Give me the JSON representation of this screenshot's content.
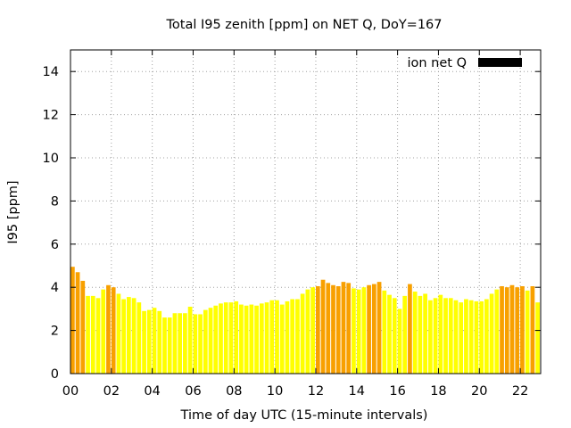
{
  "chart_data": {
    "type": "bar",
    "title": "Total I95 zenith [ppm] on NET Q, DoY=167",
    "xlabel": "Time of day UTC (15-minute intervals)",
    "ylabel": "I95 [ppm]",
    "xlim": [
      0,
      23
    ],
    "ylim": [
      0,
      15
    ],
    "x_ticks": [
      "00",
      "02",
      "04",
      "06",
      "08",
      "10",
      "12",
      "14",
      "16",
      "18",
      "20",
      "22"
    ],
    "y_ticks": [
      "0",
      "2",
      "4",
      "6",
      "8",
      "10",
      "12",
      "14"
    ],
    "grid": true,
    "legend": {
      "position": "top-right",
      "label": "ion net Q",
      "color": "#000000"
    },
    "colors": {
      "low": "#ffff00",
      "medium": "#f8a000",
      "legend_swatch": "#000000"
    },
    "interval_hours": 0.25,
    "series": [
      {
        "name": "ion net Q",
        "values": [
          4.95,
          4.7,
          4.3,
          3.6,
          3.6,
          3.5,
          3.9,
          4.1,
          4.0,
          3.7,
          3.45,
          3.55,
          3.5,
          3.3,
          2.9,
          2.95,
          3.05,
          2.9,
          2.6,
          2.6,
          2.8,
          2.8,
          2.8,
          3.1,
          2.75,
          2.75,
          2.95,
          3.05,
          3.15,
          3.25,
          3.3,
          3.3,
          3.35,
          3.2,
          3.15,
          3.2,
          3.15,
          3.25,
          3.3,
          3.4,
          3.4,
          3.2,
          3.35,
          3.45,
          3.45,
          3.7,
          3.9,
          4.0,
          4.05,
          4.35,
          4.2,
          4.1,
          4.05,
          4.25,
          4.2,
          3.95,
          3.9,
          4.0,
          4.1,
          4.15,
          4.25,
          3.85,
          3.65,
          3.5,
          3.0,
          3.6,
          4.15,
          3.8,
          3.6,
          3.7,
          3.4,
          3.5,
          3.65,
          3.5,
          3.5,
          3.4,
          3.3,
          3.45,
          3.4,
          3.35,
          3.35,
          3.45,
          3.7,
          3.9,
          4.05,
          4.0,
          4.1,
          4.0,
          4.05,
          3.85,
          4.05,
          3.3
        ],
        "levels": [
          "medium",
          "medium",
          "medium",
          "low",
          "low",
          "low",
          "low",
          "medium",
          "medium",
          "low",
          "low",
          "low",
          "low",
          "low",
          "low",
          "low",
          "low",
          "low",
          "low",
          "low",
          "low",
          "low",
          "low",
          "low",
          "low",
          "low",
          "low",
          "low",
          "low",
          "low",
          "low",
          "low",
          "low",
          "low",
          "low",
          "low",
          "low",
          "low",
          "low",
          "low",
          "low",
          "low",
          "low",
          "low",
          "low",
          "low",
          "low",
          "low",
          "medium",
          "medium",
          "medium",
          "medium",
          "medium",
          "medium",
          "medium",
          "low",
          "low",
          "low",
          "medium",
          "medium",
          "medium",
          "low",
          "low",
          "low",
          "low",
          "low",
          "medium",
          "low",
          "low",
          "low",
          "low",
          "low",
          "low",
          "low",
          "low",
          "low",
          "low",
          "low",
          "low",
          "low",
          "low",
          "low",
          "low",
          "low",
          "medium",
          "medium",
          "medium",
          "medium",
          "medium",
          "low",
          "medium",
          "low"
        ]
      }
    ]
  }
}
